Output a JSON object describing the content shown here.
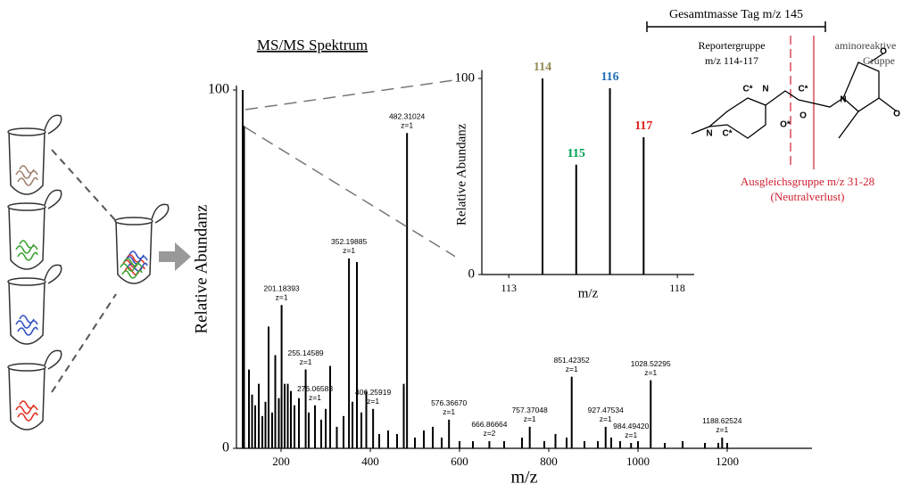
{
  "title": "MS/MS Spektrum",
  "chart_data": [
    {
      "type": "stick",
      "x_label": "m/z",
      "y_label": "Relative Abundanz",
      "color": "#000000",
      "x": [
        114,
        117,
        128,
        135,
        142,
        150,
        158,
        165,
        172,
        180,
        187,
        195,
        201.18393,
        208,
        215,
        222,
        230,
        240,
        255.14589,
        262,
        276.06583,
        290,
        300,
        310,
        325,
        340,
        352.19885,
        360,
        370,
        380,
        391,
        406.25919,
        420,
        440,
        460,
        475,
        482.31024,
        500,
        520,
        540,
        560,
        576.3667,
        600,
        630,
        666.86664,
        700,
        740,
        757.37048,
        790,
        815,
        840,
        851.42352,
        880,
        910,
        927.47534,
        940,
        960,
        984.4942,
        1000,
        1028.52295,
        1060,
        1100,
        1150,
        1180,
        1188.62524,
        1200
      ],
      "values": [
        100,
        90,
        22,
        15,
        12,
        18,
        9,
        13,
        34,
        10,
        26,
        14,
        40,
        18,
        18,
        16,
        12,
        14,
        22,
        10,
        12,
        8,
        11,
        23,
        6,
        9,
        53,
        13,
        52,
        10,
        16,
        11,
        4,
        5,
        4,
        18,
        88,
        3,
        5,
        6,
        3,
        8,
        2,
        2,
        2,
        2,
        3,
        6,
        2,
        4,
        3,
        20,
        2,
        2,
        6,
        3,
        2,
        1.5,
        2,
        19,
        1.5,
        2,
        1.5,
        1.5,
        3,
        1.5
      ],
      "x_labels": [
        null,
        null,
        null,
        null,
        null,
        null,
        null,
        null,
        null,
        null,
        null,
        null,
        "201.18393",
        null,
        null,
        null,
        null,
        null,
        "255.14589",
        null,
        "276.06583",
        null,
        null,
        null,
        null,
        null,
        "352.19885",
        null,
        null,
        null,
        null,
        "406.25919",
        null,
        null,
        null,
        null,
        "482.31024",
        null,
        null,
        null,
        null,
        "576.36670",
        null,
        null,
        "666.86664",
        null,
        null,
        "757.37048",
        null,
        null,
        null,
        "851.42352",
        null,
        null,
        "927.47534",
        null,
        null,
        "984.49420",
        null,
        "1028.52295",
        null,
        null,
        null,
        null,
        "1188.62524",
        null
      ],
      "charge_labels": [
        null,
        null,
        null,
        null,
        null,
        null,
        null,
        null,
        null,
        null,
        null,
        null,
        "z=1",
        null,
        null,
        null,
        null,
        null,
        "z=1",
        null,
        "z=1",
        null,
        null,
        null,
        null,
        null,
        "z=1",
        null,
        null,
        null,
        null,
        "z=1",
        null,
        null,
        null,
        null,
        "z=1",
        null,
        null,
        null,
        null,
        "z=1",
        null,
        null,
        "z=2",
        null,
        null,
        "z=1",
        null,
        null,
        null,
        "z=1",
        null,
        null,
        "z=1",
        null,
        null,
        "z=1",
        null,
        "z=1",
        null,
        null,
        null,
        null,
        "z=1",
        null
      ],
      "xlim": [
        100,
        1390
      ],
      "ylim": [
        0,
        100
      ],
      "xticks": [
        200,
        400,
        600,
        800,
        1000,
        1200
      ],
      "yticks": [
        0,
        100
      ]
    },
    {
      "type": "stick",
      "x_label": "m/z",
      "y_label": "Relative Abundanz",
      "x": [
        114,
        115,
        116,
        117
      ],
      "values": [
        100,
        56,
        95,
        70
      ],
      "colors": [
        "#948a54",
        "#00a050",
        "#1f6fb5",
        "#e0201c"
      ],
      "xlim": [
        112.2,
        118.5
      ],
      "ylim": [
        0,
        102
      ],
      "xticks": [
        113,
        118
      ],
      "yticks": [
        0,
        100
      ]
    }
  ],
  "structure": {
    "mass_label": "Gesamtmasse Tag m/z 145",
    "reporter": [
      "Reportergruppe",
      "m/z 114-117"
    ],
    "reactive": [
      "aminoreaktive",
      "Gruppe"
    ],
    "balance": [
      "Ausgleichsgruppe m/z 31-28",
      "(Neutralverlust)"
    ],
    "atoms": [
      "N",
      "N",
      "C*",
      "C*",
      "C*",
      "O",
      "O*",
      "N",
      "O",
      "O"
    ]
  }
}
